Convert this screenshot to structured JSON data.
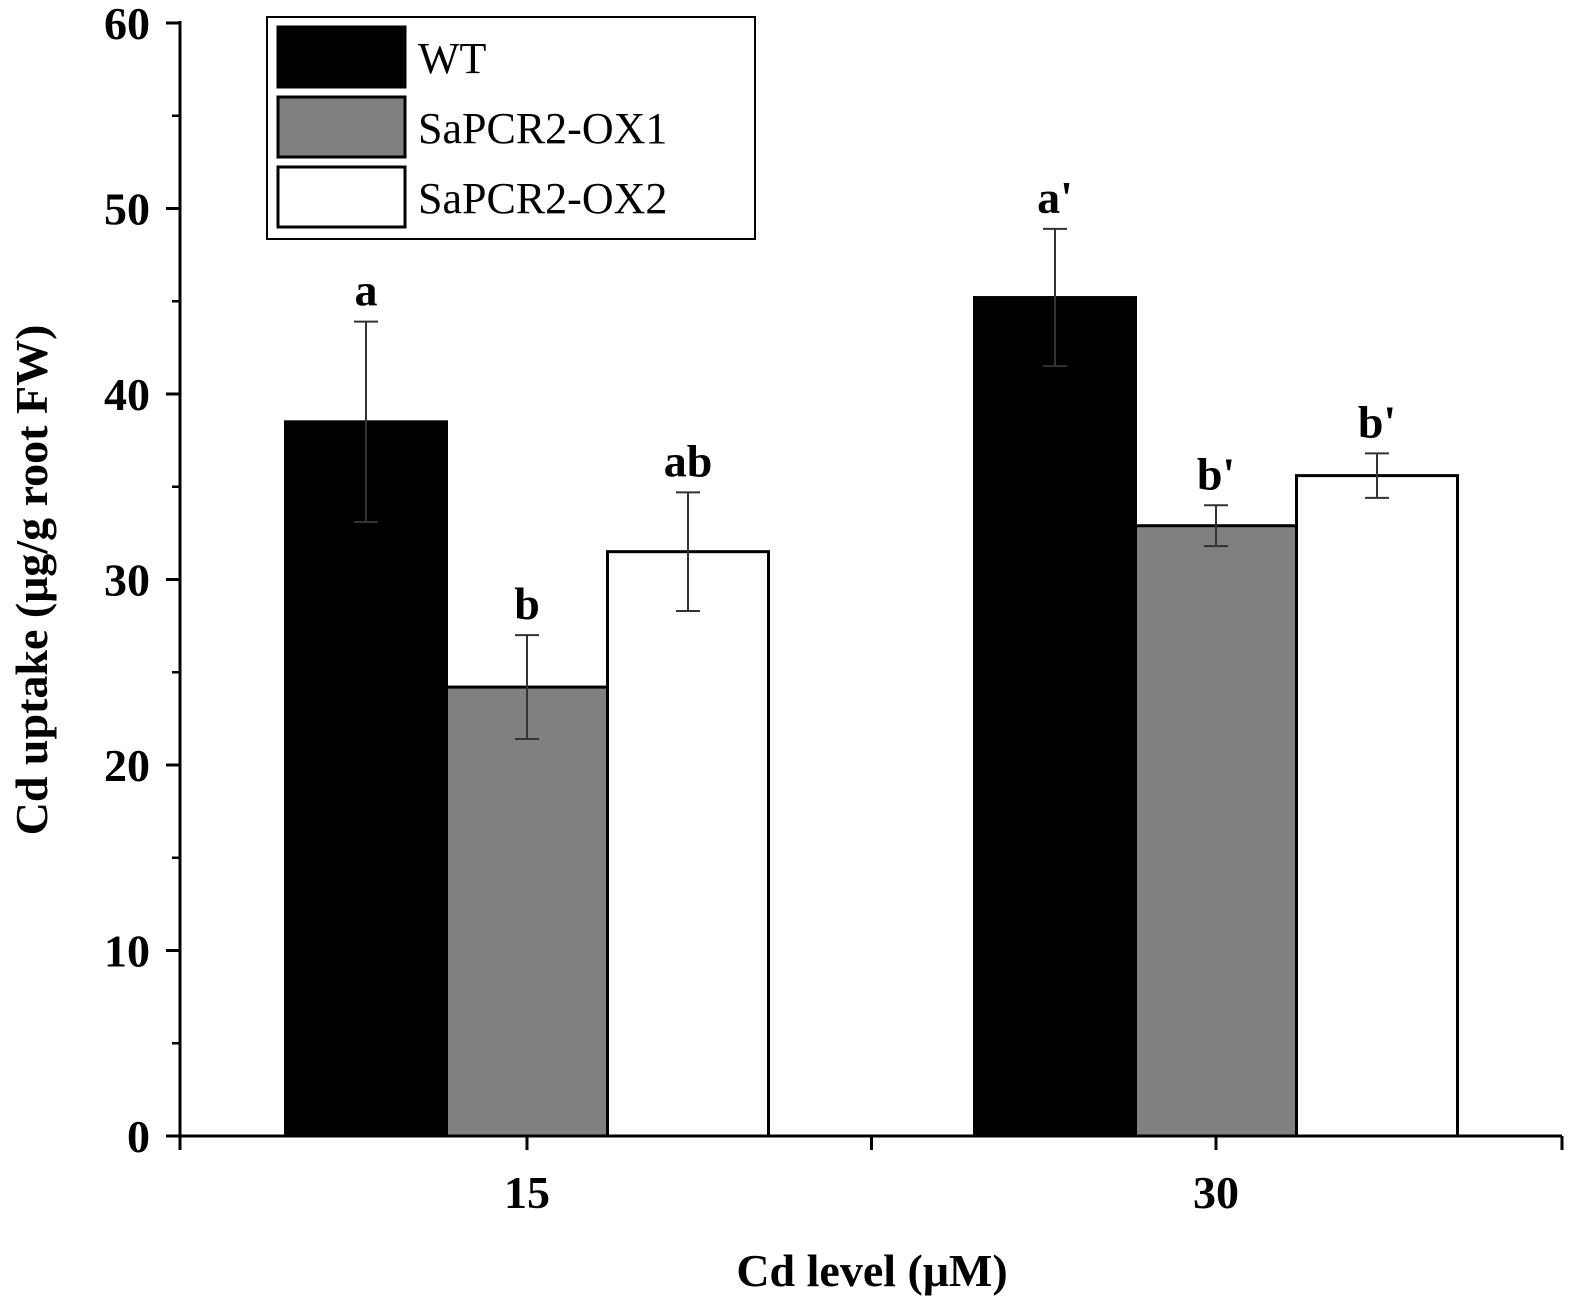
{
  "chart_data": {
    "type": "bar",
    "title": "",
    "xlabel": "Cd level (μM)",
    "ylabel": "Cd uptake (μg/g  root FW)",
    "ylim": [
      0,
      60
    ],
    "yticks": [
      "0",
      "10",
      "20",
      "30",
      "40",
      "50",
      "60"
    ],
    "categories": [
      "15",
      "30"
    ],
    "series": [
      {
        "name": "WT",
        "color": "#000000",
        "values": [
          38.5,
          45.2
        ],
        "errors": [
          5.4,
          3.7
        ],
        "labels": [
          "a",
          "a'"
        ]
      },
      {
        "name": "SaPCR2-OX1",
        "color": "#808080",
        "values": [
          24.2,
          32.9
        ],
        "errors": [
          2.8,
          1.1
        ],
        "labels": [
          "b",
          "b'"
        ]
      },
      {
        "name": "SaPCR2-OX2",
        "color": "#ffffff",
        "values": [
          31.5,
          35.6
        ],
        "errors": [
          3.2,
          1.2
        ],
        "labels": [
          "ab",
          "b'"
        ]
      }
    ],
    "legend_position": "top-left",
    "grid": false
  }
}
